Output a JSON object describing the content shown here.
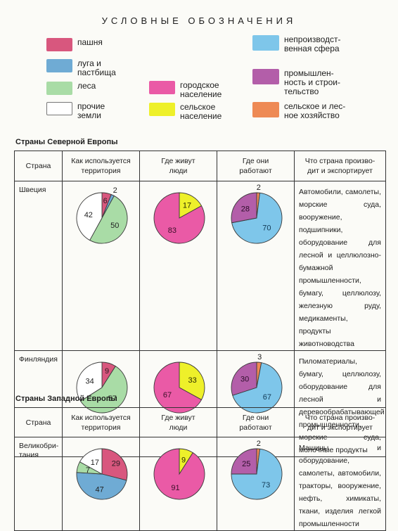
{
  "legend": {
    "title": "УСЛОВНЫЕ ОБОЗНАЧЕНИЯ",
    "items": [
      {
        "key": "arable",
        "label": "пашня",
        "color": "#d8577e"
      },
      {
        "key": "meadow",
        "label": "луга и\nпастбища",
        "color": "#6fabd4"
      },
      {
        "key": "forest",
        "label": "леса",
        "color": "#a9dca6"
      },
      {
        "key": "other",
        "label": "прочие\nземли",
        "color": "#ffffff"
      },
      {
        "key": "urban",
        "label": "городское\nнаселение",
        "color": "#ea5aa6"
      },
      {
        "key": "rural",
        "label": "сельское\nнаселение",
        "color": "#eef02a"
      },
      {
        "key": "services",
        "label": "непроизводст-\nвенная сфера",
        "color": "#7ec6ea"
      },
      {
        "key": "industry",
        "label": "промышлен-\nность и строи-\nтельство",
        "color": "#b35ea9"
      },
      {
        "key": "agri",
        "label": "сельское и лес-\nное хозяйство",
        "color": "#ee8a55"
      }
    ]
  },
  "headers": {
    "country": "Страна",
    "territory": "Как используется\nтерритория",
    "people": "Где живут\nлюди",
    "work": "Где они\nработают",
    "exports": "Что страна произво-\nдит и экспортирует"
  },
  "sections": [
    {
      "title": "Страны Северной Европы",
      "countries": [
        {
          "name": "Швеция",
          "exports": "Автомобили, самолеты, морские суда, вооружение, подшипники, оборудование для лесной и целлюлозно-бумажной промышленности, бумагу, целлюлозу, железную руду, медикаменты, продукты животноводства"
        },
        {
          "name": "Финляндия",
          "exports": "Пиломатериалы, бумагу, целлюлозу, оборудование для лесной и деревообрабатывающей промышленности, морские суда, молочные продукты"
        }
      ]
    },
    {
      "title": "Страны Западной Европы",
      "countries": [
        {
          "name": "Великобри-\nтания",
          "exports": "Машины и оборудование, самолеты, автомобили, тракторы, вооружение, нефть, химикаты, ткани, изделия легкой промышленности"
        }
      ]
    }
  ],
  "chart_data": [
    {
      "type": "pie",
      "country": "Швеция",
      "column": "Как используется территория",
      "slices": [
        {
          "key": "arable",
          "value": 6
        },
        {
          "key": "meadow",
          "value": 2
        },
        {
          "key": "forest",
          "value": 50
        },
        {
          "key": "other",
          "value": 42
        }
      ]
    },
    {
      "type": "pie",
      "country": "Швеция",
      "column": "Где живут люди",
      "slices": [
        {
          "key": "rural",
          "value": 17
        },
        {
          "key": "urban",
          "value": 83
        }
      ]
    },
    {
      "type": "pie",
      "country": "Швеция",
      "column": "Где они работают",
      "slices": [
        {
          "key": "agri",
          "value": 2
        },
        {
          "key": "services",
          "value": 70
        },
        {
          "key": "industry",
          "value": 28
        }
      ]
    },
    {
      "type": "pie",
      "country": "Финляндия",
      "column": "Как используется территория",
      "slices": [
        {
          "key": "arable",
          "value": 9
        },
        {
          "key": "forest",
          "value": 57
        },
        {
          "key": "other",
          "value": 34
        }
      ]
    },
    {
      "type": "pie",
      "country": "Финляндия",
      "column": "Где живут люди",
      "slices": [
        {
          "key": "rural",
          "value": 33
        },
        {
          "key": "urban",
          "value": 67
        }
      ]
    },
    {
      "type": "pie",
      "country": "Финляндия",
      "column": "Где они работают",
      "slices": [
        {
          "key": "agri",
          "value": 3
        },
        {
          "key": "services",
          "value": 67
        },
        {
          "key": "industry",
          "value": 30
        }
      ]
    },
    {
      "type": "pie",
      "country": "Великобритания",
      "column": "Как используется территория",
      "slices": [
        {
          "key": "arable",
          "value": 29
        },
        {
          "key": "meadow",
          "value": 47
        },
        {
          "key": "forest",
          "value": 7
        },
        {
          "key": "other",
          "value": 17
        }
      ]
    },
    {
      "type": "pie",
      "country": "Великобритания",
      "column": "Где живут люди",
      "slices": [
        {
          "key": "rural",
          "value": 9
        },
        {
          "key": "urban",
          "value": 91
        }
      ]
    },
    {
      "type": "pie",
      "country": "Великобритания",
      "column": "Где они работают",
      "slices": [
        {
          "key": "agri",
          "value": 2
        },
        {
          "key": "services",
          "value": 73
        },
        {
          "key": "industry",
          "value": 25
        }
      ]
    }
  ]
}
